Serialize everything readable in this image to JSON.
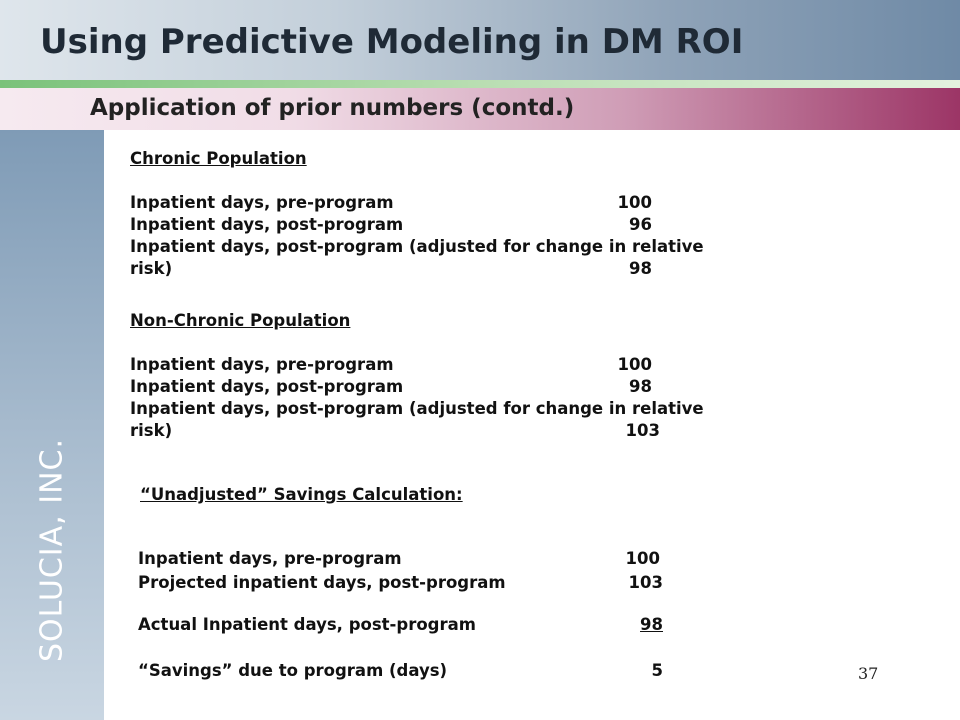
{
  "slide": {
    "title": "Using Predictive Modeling in DM ROI",
    "subtitle": "Application of prior numbers (contd.)",
    "sidebar_text": "SOLUCIA, INC.",
    "page_number": "37"
  },
  "chronic": {
    "heading": "Chronic Population",
    "rows": [
      {
        "label": "Inpatient days, pre-program",
        "value": "100"
      },
      {
        "label": "Inpatient days, post-program",
        "value": "96"
      },
      {
        "label": "Inpatient days, post-program (adjusted for change in relative",
        "value": ""
      },
      {
        "label": "risk)",
        "value": "98"
      }
    ]
  },
  "non_chronic": {
    "heading": "Non-Chronic Population",
    "rows": [
      {
        "label": "Inpatient days, pre-program",
        "value": "100"
      },
      {
        "label": "Inpatient days, post-program",
        "value": "98"
      },
      {
        "label": "Inpatient days, post-program (adjusted for change in relative",
        "value": ""
      },
      {
        "label": "risk)",
        "value": "103"
      }
    ]
  },
  "savings": {
    "heading": "“Unadjusted” Savings Calculation:",
    "rows": [
      {
        "label": "Inpatient days, pre-program",
        "value": "100"
      },
      {
        "label": "Projected inpatient days, post-program",
        "value": "103"
      },
      {
        "label": "Actual Inpatient days, post-program",
        "value": "98"
      },
      {
        "label": "“Savings” due to program (days)",
        "value": "5"
      }
    ]
  }
}
